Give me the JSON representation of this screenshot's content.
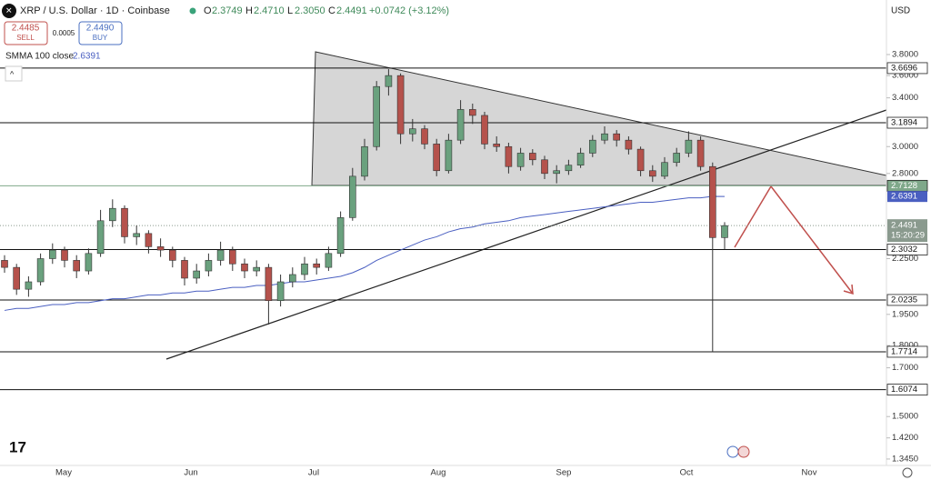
{
  "header": {
    "symbol": "XRP / U.S. Dollar · 1D · Coinbase",
    "o_label": "O",
    "open": "2.3749",
    "h_label": "H",
    "high": "2.4710",
    "l_label": "L",
    "low": "2.3050",
    "c_label": "C",
    "close": "2.4491",
    "change": "+0.0742 (+3.12%)",
    "sell_price": "2.4485",
    "sell_label": "SELL",
    "spread": "0.0005",
    "buy_price": "2.4490",
    "buy_label": "BUY",
    "indicator": "SMMA 100 close",
    "indicator_value": "2.6391",
    "currency": "USD",
    "countdown": "15:20:29"
  },
  "chart_data": {
    "type": "candlestick",
    "log_scale": true,
    "grid": false,
    "up_color": "#6aa17e",
    "down_color": "#b5524c",
    "ylim": [
      1.323,
      4.371
    ],
    "yticks": [
      {
        "value": 1.345,
        "label": "1.3450"
      },
      {
        "value": 1.42,
        "label": "1.4200"
      },
      {
        "value": 1.5,
        "label": "1.5000"
      },
      {
        "value": 1.7,
        "label": "1.7000"
      },
      {
        "value": 1.8,
        "label": "1.8000"
      },
      {
        "value": 1.95,
        "label": "1.9500"
      },
      {
        "value": 2.25,
        "label": "2.2500"
      },
      {
        "value": 2.8,
        "label": "2.8000"
      },
      {
        "value": 3.0,
        "label": "3.0000"
      },
      {
        "value": 3.4,
        "label": "3.4000"
      },
      {
        "value": 3.6,
        "label": "3.6000"
      },
      {
        "value": 3.8,
        "label": "3.8000"
      }
    ],
    "x_labels": [
      "May",
      "Jun",
      "Jul",
      "Aug",
      "Sep",
      "Oct",
      "Nov"
    ],
    "candles": [
      [
        2.24,
        2.27,
        2.17,
        2.2
      ],
      [
        2.2,
        2.22,
        2.05,
        2.08
      ],
      [
        2.08,
        2.15,
        2.04,
        2.12
      ],
      [
        2.12,
        2.28,
        2.1,
        2.25
      ],
      [
        2.25,
        2.34,
        2.22,
        2.3
      ],
      [
        2.3,
        2.32,
        2.2,
        2.24
      ],
      [
        2.24,
        2.27,
        2.14,
        2.18
      ],
      [
        2.18,
        2.31,
        2.16,
        2.28
      ],
      [
        2.28,
        2.55,
        2.26,
        2.48
      ],
      [
        2.48,
        2.62,
        2.44,
        2.56
      ],
      [
        2.56,
        2.58,
        2.34,
        2.38
      ],
      [
        2.38,
        2.45,
        2.33,
        2.4
      ],
      [
        2.4,
        2.42,
        2.28,
        2.32
      ],
      [
        2.32,
        2.37,
        2.26,
        2.3
      ],
      [
        2.3,
        2.32,
        2.2,
        2.24
      ],
      [
        2.24,
        2.26,
        2.1,
        2.14
      ],
      [
        2.14,
        2.22,
        2.11,
        2.18
      ],
      [
        2.18,
        2.28,
        2.15,
        2.24
      ],
      [
        2.24,
        2.35,
        2.21,
        2.3
      ],
      [
        2.3,
        2.32,
        2.18,
        2.22
      ],
      [
        2.22,
        2.25,
        2.14,
        2.18
      ],
      [
        2.18,
        2.24,
        2.15,
        2.2
      ],
      [
        2.2,
        2.22,
        1.9,
        2.02
      ],
      [
        2.02,
        2.16,
        1.99,
        2.12
      ],
      [
        2.12,
        2.2,
        2.09,
        2.16
      ],
      [
        2.16,
        2.26,
        2.13,
        2.22
      ],
      [
        2.22,
        2.25,
        2.16,
        2.2
      ],
      [
        2.2,
        2.32,
        2.18,
        2.28
      ],
      [
        2.28,
        2.54,
        2.26,
        2.5
      ],
      [
        2.5,
        2.84,
        2.48,
        2.78
      ],
      [
        2.78,
        3.06,
        2.75,
        3.0
      ],
      [
        3.0,
        3.55,
        2.97,
        3.5
      ],
      [
        3.5,
        3.66,
        3.42,
        3.6
      ],
      [
        3.6,
        3.62,
        3.02,
        3.1
      ],
      [
        3.1,
        3.22,
        3.04,
        3.14
      ],
      [
        3.14,
        3.17,
        2.98,
        3.02
      ],
      [
        3.02,
        3.06,
        2.78,
        2.82
      ],
      [
        2.82,
        3.1,
        2.8,
        3.05
      ],
      [
        3.05,
        3.38,
        3.02,
        3.3
      ],
      [
        3.3,
        3.35,
        3.18,
        3.25
      ],
      [
        3.25,
        3.28,
        2.98,
        3.02
      ],
      [
        3.02,
        3.08,
        2.96,
        3.0
      ],
      [
        3.0,
        3.03,
        2.8,
        2.85
      ],
      [
        2.85,
        2.99,
        2.82,
        2.95
      ],
      [
        2.95,
        2.98,
        2.86,
        2.9
      ],
      [
        2.9,
        2.93,
        2.76,
        2.8
      ],
      [
        2.8,
        2.86,
        2.73,
        2.82
      ],
      [
        2.82,
        2.9,
        2.79,
        2.86
      ],
      [
        2.86,
        2.99,
        2.84,
        2.95
      ],
      [
        2.95,
        3.09,
        2.92,
        3.05
      ],
      [
        3.05,
        3.16,
        3.02,
        3.1
      ],
      [
        3.1,
        3.13,
        3.0,
        3.05
      ],
      [
        3.05,
        3.08,
        2.94,
        2.98
      ],
      [
        2.98,
        3.0,
        2.78,
        2.82
      ],
      [
        2.82,
        2.86,
        2.74,
        2.78
      ],
      [
        2.78,
        2.92,
        2.76,
        2.88
      ],
      [
        2.88,
        2.99,
        2.85,
        2.95
      ],
      [
        2.95,
        3.12,
        2.92,
        3.05
      ],
      [
        3.05,
        3.08,
        2.82,
        2.85
      ],
      [
        2.85,
        2.88,
        1.77,
        2.3749
      ],
      [
        2.3749,
        2.471,
        2.305,
        2.4491
      ]
    ],
    "smma": {
      "name": "SMMA 100 close",
      "color": "#4a5fc1",
      "values": [
        1.97,
        1.98,
        1.98,
        1.99,
        2.0,
        2.0,
        2.01,
        2.01,
        2.02,
        2.03,
        2.03,
        2.04,
        2.05,
        2.05,
        2.06,
        2.06,
        2.07,
        2.07,
        2.08,
        2.09,
        2.09,
        2.1,
        2.1,
        2.11,
        2.12,
        2.12,
        2.13,
        2.14,
        2.15,
        2.17,
        2.2,
        2.24,
        2.27,
        2.3,
        2.33,
        2.36,
        2.38,
        2.41,
        2.43,
        2.44,
        2.46,
        2.47,
        2.48,
        2.5,
        2.51,
        2.52,
        2.53,
        2.54,
        2.55,
        2.56,
        2.57,
        2.58,
        2.59,
        2.6,
        2.6,
        2.61,
        2.62,
        2.63,
        2.63,
        2.64,
        2.6391
      ]
    },
    "levels": [
      3.6696,
      3.1894,
      2.7128,
      2.3032,
      2.0235,
      1.7714,
      1.6074
    ],
    "level_color": "#111111",
    "support_color": "#7fa88a",
    "last_price": 2.4491,
    "last_color": "#8a9a8e"
  }
}
